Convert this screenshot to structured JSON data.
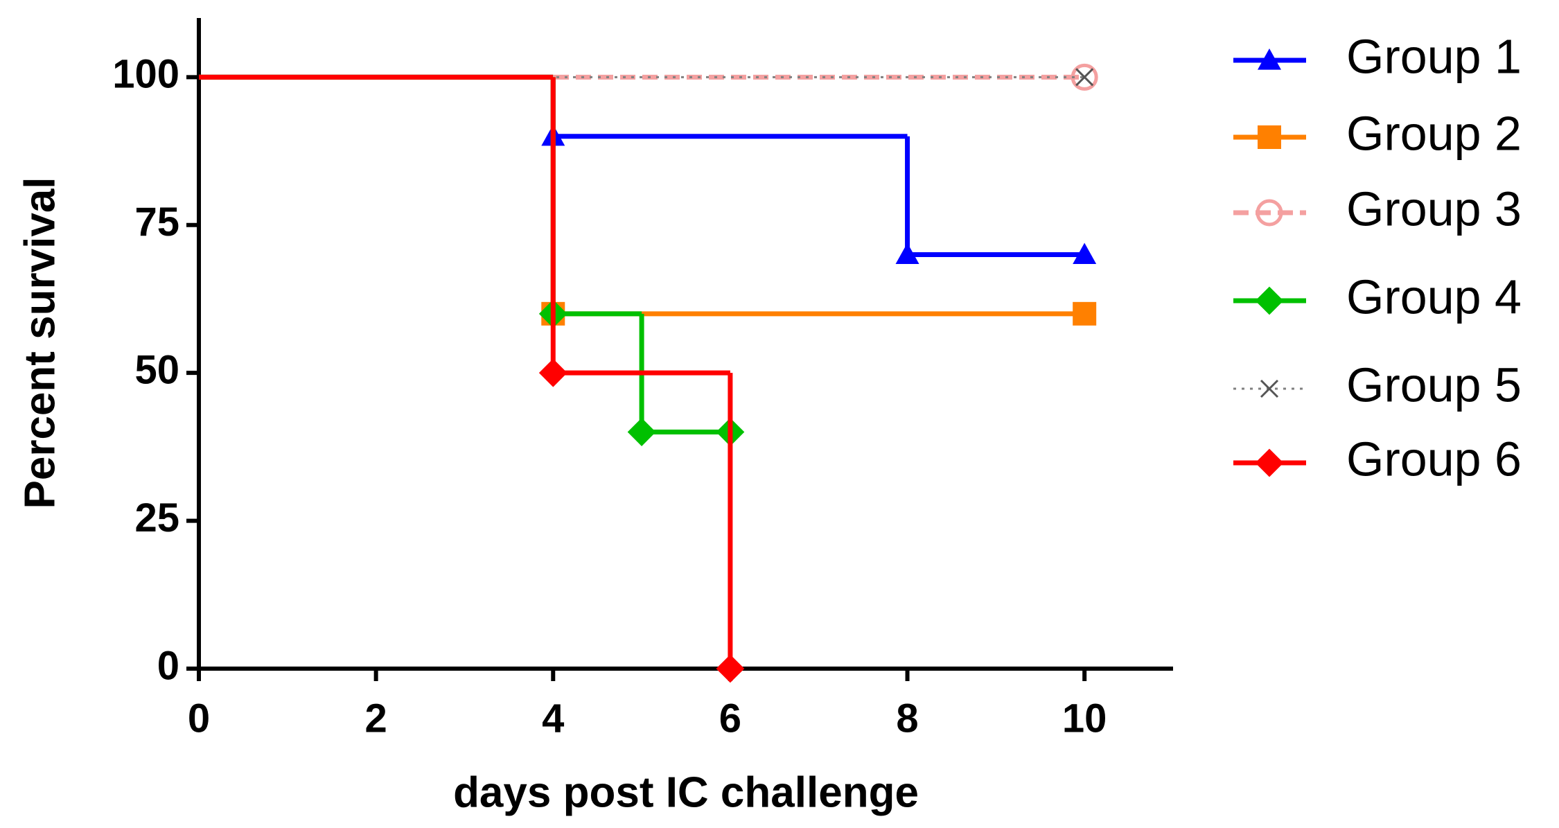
{
  "chart_data": {
    "type": "step",
    "xlabel": "days post IC challenge",
    "ylabel": "Percent survival",
    "xlim": [
      0,
      11
    ],
    "xticks": [
      0,
      2,
      4,
      6,
      8,
      10
    ],
    "ylim": [
      0,
      110
    ],
    "yticks": [
      0,
      25,
      50,
      75,
      100
    ],
    "series": [
      {
        "name": "Group 1",
        "color": "#0000ff",
        "marker": "triangle",
        "dash": "solid",
        "x": [
          0,
          4,
          8,
          10
        ],
        "values": [
          100,
          90,
          70,
          70
        ]
      },
      {
        "name": "Group 2",
        "color": "#ff8000",
        "marker": "square",
        "dash": "solid",
        "x": [
          0,
          4,
          10
        ],
        "values": [
          100,
          60,
          60
        ]
      },
      {
        "name": "Group 3",
        "color": "#f4a0a0",
        "marker": "circle",
        "dash": "dashed",
        "x": [
          0,
          10
        ],
        "values": [
          100,
          100
        ]
      },
      {
        "name": "Group 4",
        "color": "#00c000",
        "marker": "diamond",
        "dash": "solid",
        "x": [
          0,
          4,
          5,
          6
        ],
        "values": [
          100,
          60,
          40,
          40
        ]
      },
      {
        "name": "Group 5",
        "color": "#808080",
        "marker": "cross",
        "dash": "dotted",
        "x": [
          0,
          10
        ],
        "values": [
          100,
          100
        ]
      },
      {
        "name": "Group 6",
        "color": "#ff0000",
        "marker": "diamond",
        "dash": "solid",
        "x": [
          0,
          4,
          6
        ],
        "values": [
          100,
          50,
          0
        ]
      }
    ]
  }
}
